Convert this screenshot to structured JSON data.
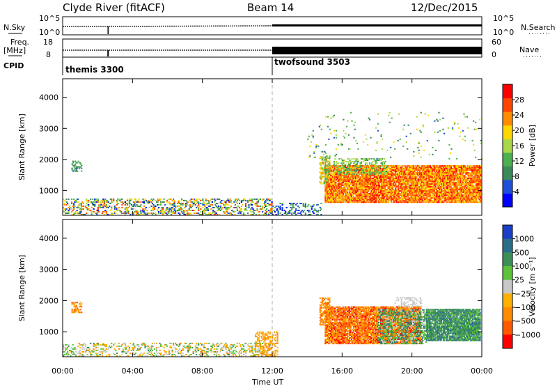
{
  "title_station": "Clyde River (fitACF)",
  "title_beam": "Beam 14",
  "title_date": "12/Dec/2015",
  "top_panels": {
    "nsky": {
      "label": "N.Sky",
      "tick_top": "10^5",
      "tick_bottom": "10^0",
      "right_label": "N.Search",
      "right_tick_top": "10^5",
      "right_tick_bottom": "10^0"
    },
    "freq": {
      "label_line1": "Freq.",
      "label_line2": "[MHz]",
      "tick_top": "18",
      "tick_bottom": "8",
      "right_label": "Nave",
      "right_tick_top": "60",
      "right_tick_bottom": "0"
    },
    "cpid": {
      "label": "CPID",
      "segments": [
        {
          "name": "themis 3300",
          "start_hour": 0,
          "end_hour": 12
        },
        {
          "name": "twofsound 3503",
          "start_hour": 12,
          "end_hour": 24
        }
      ]
    }
  },
  "chart_data": [
    {
      "type": "heatmap",
      "name": "Power",
      "xlabel": "Time UT",
      "ylabel": "Slant Range [km]",
      "xlim": [
        0,
        24
      ],
      "ylim": [
        200,
        4600
      ],
      "x_ticks": [
        "00:00",
        "04:00",
        "08:00",
        "12:00",
        "16:00",
        "20:00",
        "00:00"
      ],
      "x_tick_hours": [
        0,
        4,
        8,
        12,
        16,
        20,
        24
      ],
      "y_ticks": [
        1000,
        2000,
        3000,
        4000
      ],
      "colorbar": {
        "label": "Power [dB]",
        "ticks": [
          4,
          8,
          12,
          16,
          20,
          24,
          28
        ],
        "range": [
          0,
          32
        ],
        "colors": [
          "#0000ff",
          "#1f4fd8",
          "#3a8a5a",
          "#4caf50",
          "#a8d848",
          "#ffd700",
          "#ff8c00",
          "#ff4500",
          "#ff0000"
        ]
      },
      "regions": [
        {
          "t0": 15.0,
          "t1": 23.9,
          "r0": 600,
          "r1": 1800,
          "v0": 18,
          "v1": 30,
          "density": 0.9
        },
        {
          "t0": 14.7,
          "t1": 15.3,
          "r0": 1200,
          "r1": 2100,
          "v0": 10,
          "v1": 24,
          "density": 0.6
        },
        {
          "t0": 15.5,
          "t1": 18.5,
          "r0": 1500,
          "r1": 2000,
          "v0": 10,
          "v1": 18,
          "density": 0.4
        },
        {
          "t0": 0.5,
          "t1": 1.1,
          "r0": 1600,
          "r1": 1950,
          "v0": 6,
          "v1": 14,
          "density": 0.5
        },
        {
          "t0": 0.0,
          "t1": 12.0,
          "r0": 200,
          "r1": 700,
          "v0": 2,
          "v1": 28,
          "density": 0.35
        },
        {
          "t0": 12.0,
          "t1": 14.8,
          "r0": 200,
          "r1": 600,
          "v0": 2,
          "v1": 14,
          "density": 0.3
        },
        {
          "t0": 14.0,
          "t1": 24.0,
          "r0": 2000,
          "r1": 3500,
          "v0": 6,
          "v1": 20,
          "density": 0.03
        }
      ]
    },
    {
      "type": "heatmap",
      "name": "Velocity",
      "xlabel": "Time UT",
      "ylabel": "Slant Range [km]",
      "xlim": [
        0,
        24
      ],
      "ylim": [
        200,
        4600
      ],
      "x_ticks": [
        "00:00",
        "04:00",
        "08:00",
        "12:00",
        "16:00",
        "20:00",
        "00:00"
      ],
      "x_tick_hours": [
        0,
        4,
        8,
        12,
        16,
        20,
        24
      ],
      "y_ticks": [
        1000,
        2000,
        3000,
        4000
      ],
      "colorbar": {
        "label": "Velocity [m s⁻¹]",
        "ticks": [
          "1000",
          "500",
          "100",
          "25",
          "−25",
          "−100",
          "−500",
          "−1000"
        ],
        "colors": [
          "#1a3fc8",
          "#2b6e8a",
          "#3d8f5a",
          "#5cc23a",
          "#c8c8c8",
          "#ffb000",
          "#ff8c00",
          "#ff5a00",
          "#ff0000"
        ]
      },
      "regions": [
        {
          "t0": 15.0,
          "t1": 20.5,
          "r0": 600,
          "r1": 1800,
          "v0": 5,
          "v1": 8,
          "density": 0.85
        },
        {
          "t0": 18.0,
          "t1": 20.8,
          "r0": 600,
          "r1": 1700,
          "v0": 1,
          "v1": 4,
          "density": 0.5
        },
        {
          "t0": 20.8,
          "t1": 23.9,
          "r0": 700,
          "r1": 1700,
          "v0": 1,
          "v1": 3,
          "density": 0.9
        },
        {
          "t0": 14.7,
          "t1": 15.3,
          "r0": 1200,
          "r1": 2100,
          "v0": 5,
          "v1": 7,
          "density": 0.6
        },
        {
          "t0": 0.5,
          "t1": 1.1,
          "r0": 1600,
          "r1": 1950,
          "v0": 5,
          "v1": 7,
          "density": 0.6
        },
        {
          "t0": 0.0,
          "t1": 12.0,
          "r0": 200,
          "r1": 650,
          "v0": 2,
          "v1": 6,
          "density": 0.3
        },
        {
          "t0": 11.0,
          "t1": 12.3,
          "r0": 200,
          "r1": 1000,
          "v0": 5,
          "v1": 6,
          "density": 0.4
        },
        {
          "t0": 19.0,
          "t1": 20.5,
          "r0": 1800,
          "r1": 2100,
          "v0": 4,
          "v1": 4,
          "density": 0.3
        }
      ]
    }
  ]
}
